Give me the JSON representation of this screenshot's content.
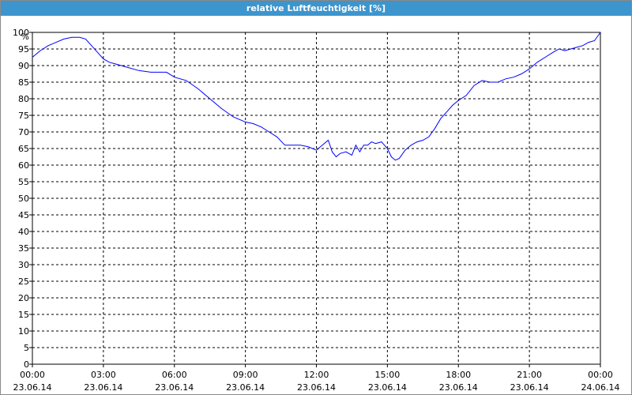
{
  "chart_data": {
    "type": "line",
    "title": "relative Luftfeuchtigkeit [%]",
    "ylabel": "%",
    "xlabel": "",
    "ylim": [
      0,
      100
    ],
    "xlim": [
      "2014-06-23 00:00",
      "2014-06-24 00:00"
    ],
    "y_ticks": [
      "0",
      "5",
      "10",
      "15",
      "20",
      "25",
      "30",
      "35",
      "40",
      "45",
      "50",
      "55",
      "60",
      "65",
      "70",
      "75",
      "80",
      "85",
      "90",
      "95",
      "100"
    ],
    "x_ticks": [
      {
        "time": "00:00",
        "date": "23.06.14"
      },
      {
        "time": "03:00",
        "date": "23.06.14"
      },
      {
        "time": "06:00",
        "date": "23.06.14"
      },
      {
        "time": "09:00",
        "date": "23.06.14"
      },
      {
        "time": "12:00",
        "date": "23.06.14"
      },
      {
        "time": "15:00",
        "date": "23.06.14"
      },
      {
        "time": "18:00",
        "date": "23.06.14"
      },
      {
        "time": "21:00",
        "date": "23.06.14"
      },
      {
        "time": "00:00",
        "date": "24.06.14"
      }
    ],
    "grid": true,
    "line_color": "#0000ff",
    "series": [
      {
        "x": [
          "00:00",
          "00:20",
          "00:40",
          "01:00",
          "01:20",
          "01:40",
          "02:00",
          "02:15",
          "02:30",
          "02:45",
          "03:00",
          "03:15",
          "03:30",
          "04:00",
          "04:30",
          "05:00",
          "05:20",
          "05:40",
          "06:00",
          "06:30",
          "07:00",
          "07:30",
          "08:00",
          "08:30",
          "09:00",
          "09:20",
          "09:40",
          "10:00",
          "10:20",
          "10:40",
          "11:00",
          "11:20",
          "11:40",
          "12:00",
          "12:15",
          "12:30",
          "12:40",
          "12:50",
          "13:00",
          "13:15",
          "13:30",
          "13:40",
          "13:50",
          "14:00",
          "14:10",
          "14:20",
          "14:30",
          "14:45",
          "15:00",
          "15:10",
          "15:20",
          "15:30",
          "15:45",
          "16:00",
          "16:15",
          "16:30",
          "16:45",
          "17:00",
          "17:15",
          "17:30",
          "17:45",
          "18:00",
          "18:20",
          "18:40",
          "19:00",
          "19:20",
          "19:40",
          "20:00",
          "20:20",
          "20:40",
          "21:00",
          "21:20",
          "21:40",
          "22:00",
          "22:15",
          "22:30",
          "22:45",
          "23:00",
          "23:15",
          "23:30",
          "23:45",
          "24:00"
        ],
        "values": [
          92.5,
          94.5,
          96,
          97,
          98,
          98.5,
          98.5,
          98,
          96,
          94,
          92,
          91,
          90.5,
          89.5,
          88.5,
          88,
          88,
          88,
          86.5,
          85.5,
          83,
          80,
          77,
          74.5,
          73,
          72.5,
          71.5,
          70,
          68.5,
          66,
          66,
          66,
          65.5,
          64.5,
          66,
          67.5,
          64,
          62.5,
          63.5,
          64,
          63,
          66,
          64,
          66,
          66,
          67,
          66.5,
          67,
          65,
          62.5,
          61.5,
          62,
          64.5,
          66,
          67,
          67.5,
          68.5,
          71,
          74,
          76,
          78,
          79.5,
          81,
          84,
          85.5,
          85,
          85,
          86,
          86.5,
          87.5,
          89,
          91,
          92.5,
          94,
          95,
          94.5,
          95,
          95.5,
          96,
          97,
          97.5,
          100
        ]
      }
    ]
  }
}
